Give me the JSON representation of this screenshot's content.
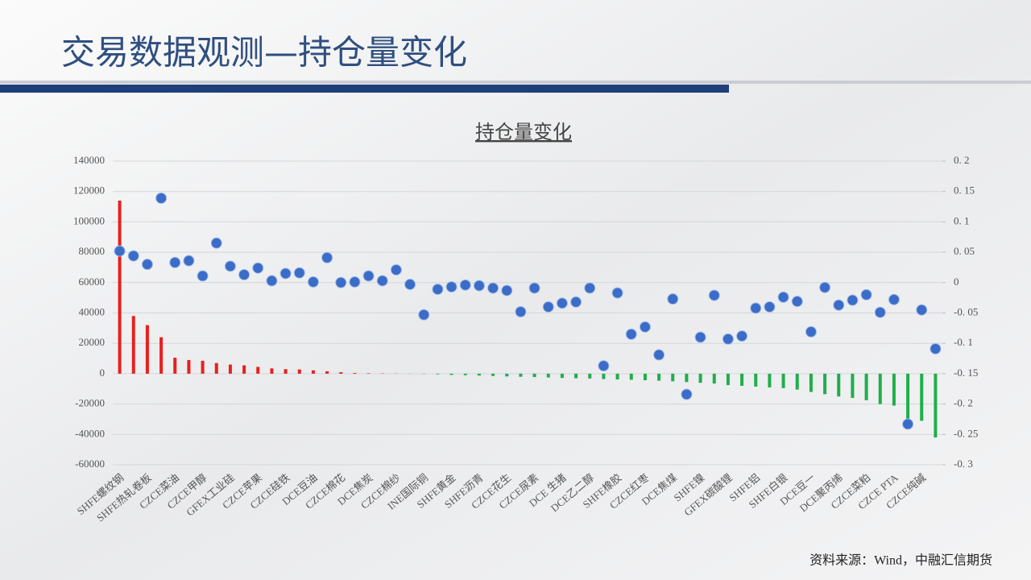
{
  "header": {
    "title": "交易数据观测—持仓量变化"
  },
  "chart_data": {
    "type": "combo",
    "title": "持仓量变化",
    "categories": [
      "SHFE螺纹钢",
      null,
      "SHFE热轧卷板",
      null,
      "CZCE菜油",
      null,
      "CZCE甲醇",
      null,
      "GFEX工业硅",
      null,
      "CZCE苹果",
      null,
      "CZCE硅铁",
      null,
      "DCE豆油",
      null,
      "CZCE棉花",
      null,
      "DCE焦炭",
      null,
      "CZCE棉纱",
      null,
      "INE国际铜",
      null,
      "SHFE黄金",
      null,
      "SHFE沥青",
      null,
      "CZCE花生",
      null,
      "CZCE尿素",
      null,
      "DCE 生猪",
      null,
      "DCE乙二醇",
      null,
      "SHFE橡胶",
      null,
      "CZCE红枣",
      null,
      "DCE焦煤",
      null,
      "SHFE镍",
      null,
      "GFEX碳酸锂",
      null,
      "SHFE铝",
      null,
      "SHFE白银",
      null,
      "DCE豆一",
      null,
      "DCE聚丙烯",
      null,
      "CZCE菜粕",
      null,
      "CZCE PTA",
      null,
      "CZCE纯碱",
      null
    ],
    "series": [
      {
        "type": "bar",
        "axis": "y",
        "color": "#e8201c",
        "negative_color": "#1fae4b",
        "values": [
          114000,
          38000,
          32000,
          24000,
          10500,
          9000,
          8500,
          7000,
          6000,
          5500,
          4500,
          3500,
          3000,
          2800,
          2200,
          1600,
          1000,
          500,
          300,
          200,
          100,
          -100,
          -200,
          -400,
          -800,
          -1000,
          -1200,
          -1500,
          -1800,
          -2000,
          -2200,
          -2500,
          -2800,
          -3000,
          -3200,
          -3500,
          -3800,
          -4000,
          -4300,
          -4600,
          -5000,
          -5500,
          -6000,
          -6500,
          -7500,
          -8000,
          -8500,
          -9000,
          -9500,
          -10500,
          -12000,
          -13500,
          -15000,
          -16000,
          -17500,
          -20000,
          -21000,
          -30000,
          -31000,
          -42000
        ]
      },
      {
        "type": "scatter",
        "axis": "y2",
        "color": "#3a6cc8",
        "values": [
          0.052,
          0.044,
          0.03,
          0.139,
          0.033,
          0.036,
          0.011,
          0.065,
          0.027,
          0.013,
          0.024,
          0.003,
          0.015,
          0.016,
          0.001,
          0.041,
          0.0,
          0.001,
          0.011,
          0.003,
          0.021,
          -0.003,
          -0.053,
          -0.011,
          -0.007,
          -0.004,
          -0.005,
          -0.009,
          -0.013,
          -0.048,
          -0.009,
          -0.04,
          -0.034,
          -0.032,
          -0.009,
          -0.137,
          -0.017,
          -0.085,
          -0.073,
          -0.119,
          -0.027,
          -0.184,
          -0.09,
          -0.021,
          -0.093,
          -0.088,
          -0.042,
          -0.04,
          -0.024,
          -0.031,
          -0.081,
          -0.008,
          -0.037,
          -0.029,
          -0.02,
          -0.049,
          -0.028,
          -0.233,
          -0.045,
          -0.109
        ]
      }
    ],
    "ylim": [
      -60000,
      140000
    ],
    "yticks": [
      140000,
      120000,
      100000,
      80000,
      60000,
      40000,
      20000,
      0,
      -20000,
      -40000,
      -60000
    ],
    "y2lim": [
      -0.3,
      0.2
    ],
    "y2ticks": [
      {
        "value": 0.2,
        "label": "0. 2"
      },
      {
        "value": 0.15,
        "label": "0. 15"
      },
      {
        "value": 0.1,
        "label": "0. 1"
      },
      {
        "value": 0.05,
        "label": "0. 05"
      },
      0,
      {
        "value": -0.05,
        "label": "-0. 05"
      },
      {
        "value": -0.1,
        "label": "-0. 1"
      },
      {
        "value": -0.15,
        "label": "-0. 15"
      },
      {
        "value": -0.2,
        "label": "-0. 2"
      },
      {
        "value": -0.25,
        "label": "-0. 25"
      },
      {
        "value": -0.3,
        "label": "-0. 3"
      }
    ],
    "grid": true
  },
  "footer": {
    "source": "资料来源：Wind，中融汇信期货"
  }
}
